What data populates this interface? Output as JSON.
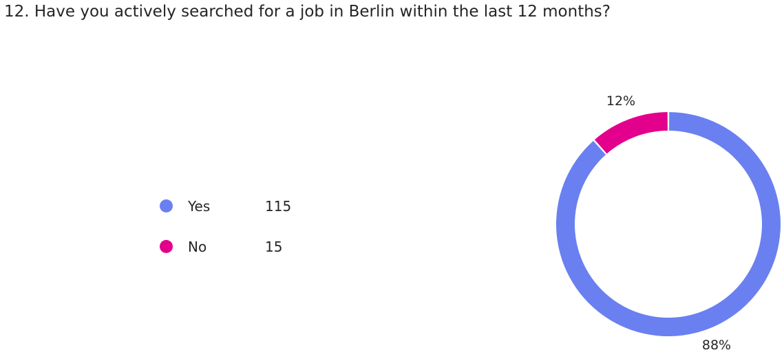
{
  "question": {
    "title": "12. Have you actively searched for a job in Berlin within the last 12 months?"
  },
  "chart_data": {
    "type": "pie",
    "donut": true,
    "categories": [
      "Yes",
      "No"
    ],
    "values": [
      115,
      15
    ],
    "percent_labels": [
      "88%",
      "12%"
    ],
    "colors": [
      "#6A80F0",
      "#E3008C"
    ],
    "legend_placement": "left"
  }
}
